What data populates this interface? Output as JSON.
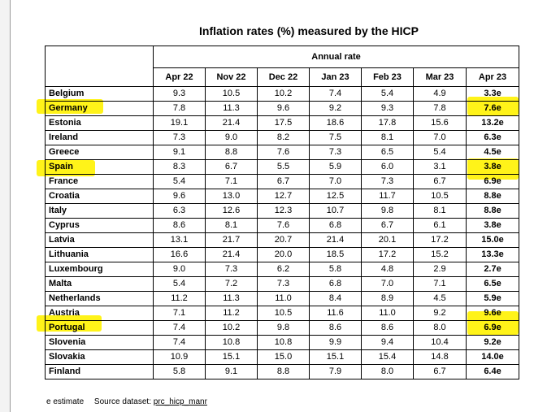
{
  "title": "Inflation rates (%) measured by the HICP",
  "group_header": "Annual rate",
  "columns": [
    "Apr 22",
    "Nov 22",
    "Dec 22",
    "Jan 23",
    "Feb 23",
    "Mar 23",
    "Apr 23"
  ],
  "rows": [
    {
      "country": "Belgium",
      "values": [
        "9.3",
        "10.5",
        "10.2",
        "7.4",
        "5.4",
        "4.9",
        "3.3e"
      ]
    },
    {
      "country": "Germany",
      "values": [
        "7.8",
        "11.3",
        "9.6",
        "9.2",
        "9.3",
        "7.8",
        "7.6e"
      ]
    },
    {
      "country": "Estonia",
      "values": [
        "19.1",
        "21.4",
        "17.5",
        "18.6",
        "17.8",
        "15.6",
        "13.2e"
      ]
    },
    {
      "country": "Ireland",
      "values": [
        "7.3",
        "9.0",
        "8.2",
        "7.5",
        "8.1",
        "7.0",
        "6.3e"
      ]
    },
    {
      "country": "Greece",
      "values": [
        "9.1",
        "8.8",
        "7.6",
        "7.3",
        "6.5",
        "5.4",
        "4.5e"
      ]
    },
    {
      "country": "Spain",
      "values": [
        "8.3",
        "6.7",
        "5.5",
        "5.9",
        "6.0",
        "3.1",
        "3.8e"
      ]
    },
    {
      "country": "France",
      "values": [
        "5.4",
        "7.1",
        "6.7",
        "7.0",
        "7.3",
        "6.7",
        "6.9e"
      ]
    },
    {
      "country": "Croatia",
      "values": [
        "9.6",
        "13.0",
        "12.7",
        "12.5",
        "11.7",
        "10.5",
        "8.8e"
      ]
    },
    {
      "country": "Italy",
      "values": [
        "6.3",
        "12.6",
        "12.3",
        "10.7",
        "9.8",
        "8.1",
        "8.8e"
      ]
    },
    {
      "country": "Cyprus",
      "values": [
        "8.6",
        "8.1",
        "7.6",
        "6.8",
        "6.7",
        "6.1",
        "3.8e"
      ]
    },
    {
      "country": "Latvia",
      "values": [
        "13.1",
        "21.7",
        "20.7",
        "21.4",
        "20.1",
        "17.2",
        "15.0e"
      ]
    },
    {
      "country": "Lithuania",
      "values": [
        "16.6",
        "21.4",
        "20.0",
        "18.5",
        "17.2",
        "15.2",
        "13.3e"
      ]
    },
    {
      "country": "Luxembourg",
      "values": [
        "9.0",
        "7.3",
        "6.2",
        "5.8",
        "4.8",
        "2.9",
        "2.7e"
      ]
    },
    {
      "country": "Malta",
      "values": [
        "5.4",
        "7.2",
        "7.3",
        "6.8",
        "7.0",
        "7.1",
        "6.5e"
      ]
    },
    {
      "country": "Netherlands",
      "values": [
        "11.2",
        "11.3",
        "11.0",
        "8.4",
        "8.9",
        "4.5",
        "5.9e"
      ]
    },
    {
      "country": "Austria",
      "values": [
        "7.1",
        "11.2",
        "10.5",
        "11.6",
        "11.0",
        "9.2",
        "9.6e"
      ]
    },
    {
      "country": "Portugal",
      "values": [
        "7.4",
        "10.2",
        "9.8",
        "8.6",
        "8.6",
        "8.0",
        "6.9e"
      ]
    },
    {
      "country": "Slovenia",
      "values": [
        "7.4",
        "10.8",
        "10.8",
        "9.9",
        "9.4",
        "10.4",
        "9.2e"
      ]
    },
    {
      "country": "Slovakia",
      "values": [
        "10.9",
        "15.1",
        "15.0",
        "15.1",
        "15.4",
        "14.8",
        "14.0e"
      ]
    },
    {
      "country": "Finland",
      "values": [
        "5.8",
        "9.1",
        "8.8",
        "7.9",
        "8.0",
        "6.7",
        "6.4e"
      ]
    }
  ],
  "footnote": {
    "estimate": "e estimate",
    "source_label": "Source dataset:",
    "dataset": "prc_hicp_manr"
  },
  "highlight_color": "#fff200"
}
